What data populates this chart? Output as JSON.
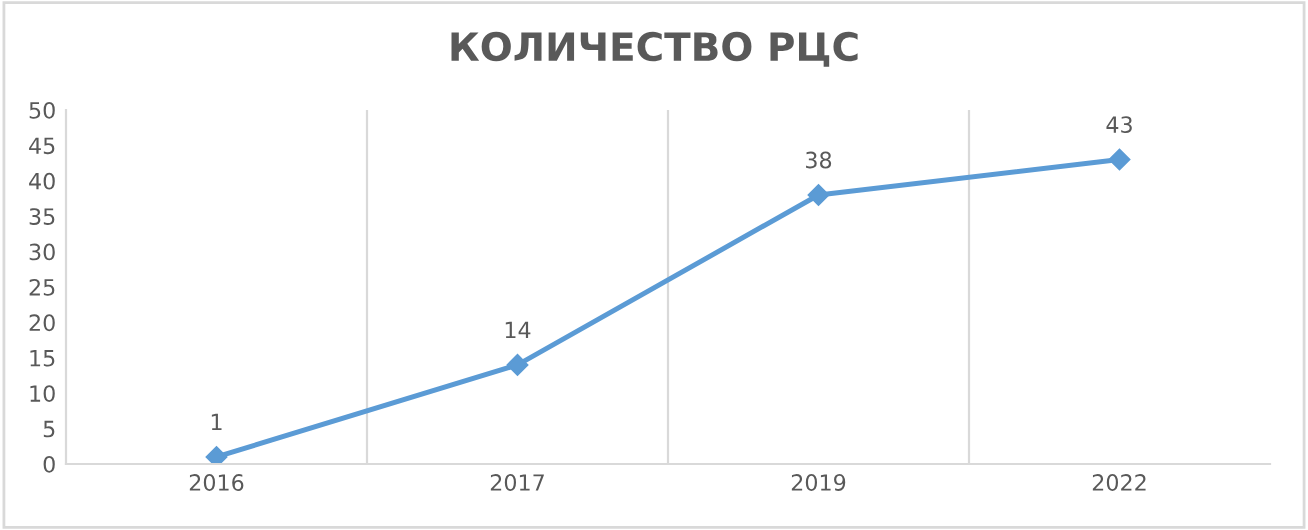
{
  "chart_data": {
    "type": "line",
    "title": "КОЛИЧЕСТВО РЦС",
    "categories": [
      "2016",
      "2017",
      "2019",
      "2022"
    ],
    "series": [
      {
        "color": "#5b9bd5",
        "values": [
          1,
          14,
          38,
          43
        ]
      }
    ],
    "ylim": [
      0,
      50
    ],
    "yticks": [
      0,
      5,
      10,
      15,
      20,
      25,
      30,
      35,
      40,
      45,
      50
    ],
    "grid": "x",
    "marker": "diamond",
    "line_style": "solid",
    "data_labels": true
  }
}
